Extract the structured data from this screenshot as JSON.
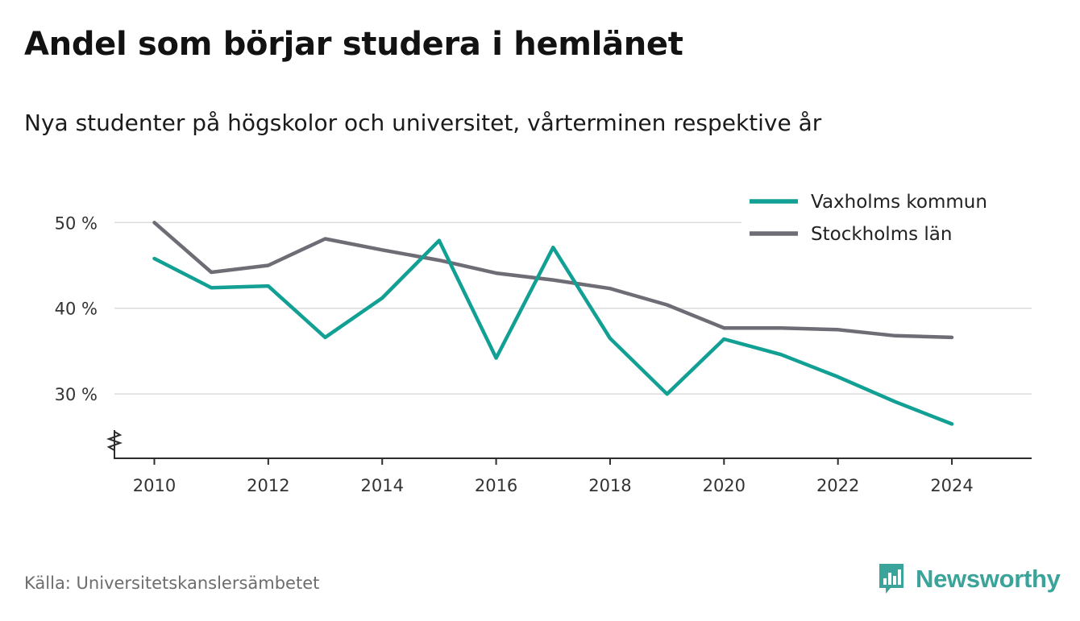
{
  "title": "Andel som börjar studera i hemlänet",
  "subtitle": "Nya studenter på högskolor och universitet, vårterminen respektive år",
  "source": "Källa: Universitetskanslersämbetet",
  "brand": {
    "name": "Newsworthy",
    "icon": "newsworthy-logo-icon",
    "color": "#3aa39a"
  },
  "chart_data": {
    "type": "line",
    "title": "Andel som börjar studera i hemlänet",
    "subtitle": "Nya studenter på högskolor och universitet, vårterminen respektive år",
    "x": [
      2010,
      2011,
      2012,
      2013,
      2014,
      2015,
      2016,
      2017,
      2018,
      2019,
      2020,
      2021,
      2022,
      2023,
      2024
    ],
    "series": [
      {
        "name": "Vaxholms kommun",
        "color": "#12a094",
        "values": [
          45.8,
          42.4,
          42.6,
          36.6,
          41.2,
          47.9,
          34.2,
          47.1,
          36.5,
          30.0,
          36.4,
          34.6,
          32.0,
          29.1,
          26.5
        ]
      },
      {
        "name": "Stockholms län",
        "color": "#6e6d75",
        "values": [
          50.0,
          44.2,
          45.0,
          48.1,
          46.8,
          45.6,
          44.1,
          43.3,
          42.3,
          40.4,
          37.7,
          37.7,
          37.5,
          36.8,
          36.6
        ]
      }
    ],
    "xticks": [
      2010,
      2012,
      2014,
      2016,
      2018,
      2020,
      2022,
      2024
    ],
    "xtick_labels": [
      "2010",
      "2012",
      "2014",
      "2016",
      "2018",
      "2020",
      "2022",
      "2024"
    ],
    "yticks": [
      30,
      40,
      50
    ],
    "ytick_labels": [
      "30 %",
      "40 %",
      "50 %"
    ],
    "xlim": [
      2009.3,
      2025.4
    ],
    "ylim": [
      22.5,
      52
    ],
    "y_axis_break": true,
    "grid": true,
    "legend_position": "top-right"
  }
}
